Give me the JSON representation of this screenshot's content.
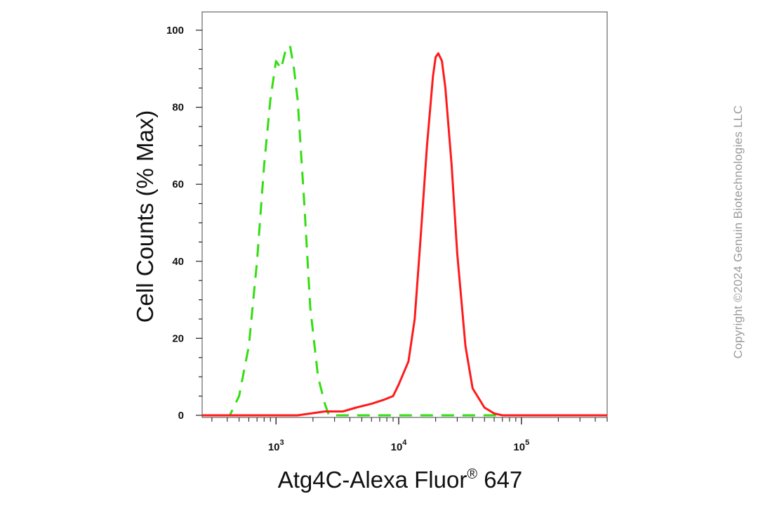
{
  "chart_data": {
    "type": "line",
    "xlabel": "Atg4C-Alexa Fluor",
    "xlabel_sup": "®",
    "xlabel_suffix": " 647",
    "ylabel": "Cell Counts (% Max)",
    "x_scale": "log",
    "xlim": [
      250,
      500000
    ],
    "ylim": [
      0,
      105
    ],
    "y_ticks": [
      0,
      20,
      40,
      60,
      80,
      100
    ],
    "x_tick_labels": [
      {
        "value": 1000,
        "base": "10",
        "exp": "3"
      },
      {
        "value": 10000,
        "base": "10",
        "exp": "4"
      },
      {
        "value": 100000,
        "base": "10",
        "exp": "5"
      }
    ],
    "grid": false,
    "legend": null,
    "series": [
      {
        "color": "#33dd11",
        "style": "dashed",
        "x": [
          250,
          420,
          500,
          600,
          700,
          800,
          900,
          1000,
          1100,
          1200,
          1300,
          1400,
          1500,
          1700,
          1900,
          2200,
          2500,
          2700,
          3000,
          5000,
          10000,
          50000,
          500000
        ],
        "y": [
          0,
          0,
          5,
          18,
          40,
          65,
          82,
          92,
          90,
          95,
          96,
          90,
          82,
          55,
          28,
          10,
          3,
          0,
          0,
          0,
          0,
          0,
          0
        ]
      },
      {
        "color": "#ff1a1a",
        "style": "solid",
        "x": [
          250,
          1500,
          2500,
          3500,
          4500,
          6000,
          7500,
          9000,
          10000,
          12000,
          13500,
          15000,
          17000,
          19000,
          20000,
          21000,
          22500,
          24000,
          27000,
          30000,
          35000,
          40000,
          50000,
          60000,
          70000,
          100000,
          500000
        ],
        "y": [
          0,
          0,
          1,
          1,
          2,
          3,
          4,
          5,
          8,
          14,
          25,
          45,
          70,
          88,
          93,
          94,
          92,
          85,
          65,
          42,
          18,
          7,
          2,
          0.5,
          0,
          0,
          0
        ]
      }
    ]
  },
  "watermark": "Copyright ©2024 Genuin Biotechnologies LLC"
}
